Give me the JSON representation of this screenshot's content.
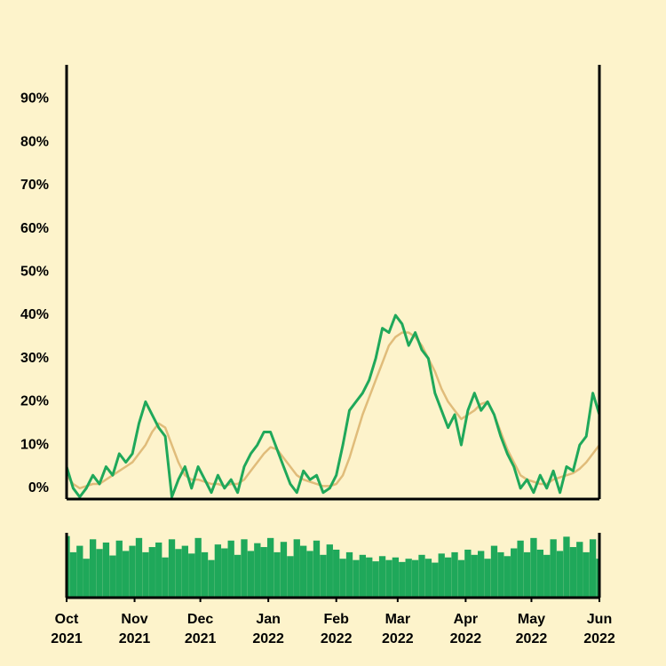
{
  "chart_data": [
    {
      "type": "line",
      "x": [
        0,
        3,
        6,
        9,
        12,
        15,
        18,
        21,
        24,
        27,
        30,
        33,
        36,
        39,
        42,
        45,
        48,
        51,
        54,
        57,
        60,
        63,
        66,
        69,
        72,
        75,
        78,
        81,
        84,
        87,
        90,
        93,
        96,
        99,
        102,
        105,
        108,
        111,
        114,
        117,
        120,
        123,
        126,
        129,
        132,
        135,
        138,
        141,
        144,
        147,
        150,
        153,
        156,
        159,
        162,
        165,
        168,
        171,
        174,
        177,
        180,
        183,
        186,
        189,
        192,
        195,
        198,
        201,
        204,
        207,
        210,
        213,
        216,
        219,
        222,
        225,
        228,
        231,
        234,
        237,
        240,
        243
      ],
      "xlim": [
        0,
        243
      ],
      "ylim": [
        -2.5,
        97.5
      ],
      "yticks": [
        {
          "value": 0,
          "label": "0%"
        },
        {
          "value": 10,
          "label": "10%"
        },
        {
          "value": 20,
          "label": "20%"
        },
        {
          "value": 30,
          "label": "30%"
        },
        {
          "value": 40,
          "label": "40%"
        },
        {
          "value": 50,
          "label": "50%"
        },
        {
          "value": 60,
          "label": "60%"
        },
        {
          "value": 70,
          "label": "70%"
        },
        {
          "value": 80,
          "label": "80%"
        },
        {
          "value": 90,
          "label": "90%"
        }
      ],
      "series": [
        {
          "color": "#1fa85a",
          "values": [
            5,
            0,
            -2,
            0,
            3,
            1,
            5,
            3,
            8,
            6,
            8,
            15,
            20,
            17,
            14,
            12,
            -2,
            2,
            5,
            0,
            5,
            2,
            -1,
            3,
            0,
            2,
            -1,
            5,
            8,
            10,
            13,
            13,
            9,
            5,
            1,
            -1,
            4,
            2,
            3,
            -1,
            0,
            3,
            10,
            18,
            20,
            22,
            25,
            30,
            37,
            36,
            40,
            38,
            33,
            36,
            32,
            30,
            22,
            18,
            14,
            17,
            10,
            18,
            22,
            18,
            20,
            17,
            12,
            8,
            5,
            0,
            2,
            -1,
            3,
            0,
            4,
            -1,
            5,
            4,
            10,
            12,
            22,
            17
          ]
        },
        {
          "color": "#e0bc7a",
          "values": [
            3,
            1,
            0,
            0.5,
            1,
            1,
            2,
            3,
            4,
            5,
            6,
            8,
            10,
            13,
            15,
            14,
            10,
            6,
            3,
            2,
            2,
            1.5,
            1,
            1,
            0.5,
            1,
            1,
            2,
            4,
            6,
            8,
            9.5,
            9,
            7,
            5,
            3,
            2,
            1.5,
            1,
            0.5,
            0.5,
            1,
            3,
            7,
            12,
            17,
            21,
            25,
            29,
            33,
            35,
            36,
            36,
            35,
            33,
            30,
            27,
            23,
            20,
            18,
            16,
            17,
            18,
            19.5,
            20,
            17,
            13,
            9,
            6,
            3,
            2,
            1.5,
            1,
            1,
            2,
            2.5,
            3,
            3.5,
            4.5,
            6,
            8,
            10
          ]
        }
      ]
    },
    {
      "type": "bar",
      "x": [
        0,
        3,
        6,
        9,
        12,
        15,
        18,
        21,
        24,
        27,
        30,
        33,
        36,
        39,
        42,
        45,
        48,
        51,
        54,
        57,
        60,
        63,
        66,
        69,
        72,
        75,
        78,
        81,
        84,
        87,
        90,
        93,
        96,
        99,
        102,
        105,
        108,
        111,
        114,
        117,
        120,
        123,
        126,
        129,
        132,
        135,
        138,
        141,
        144,
        147,
        150,
        153,
        156,
        159,
        162,
        165,
        168,
        171,
        174,
        177,
        180,
        183,
        186,
        189,
        192,
        195,
        198,
        201,
        204,
        207,
        210,
        213,
        216,
        219,
        222,
        225,
        228,
        231,
        234,
        237,
        240,
        243
      ],
      "xlim": [
        0,
        243
      ],
      "ylim": [
        0,
        100
      ],
      "color": "#1fa85a",
      "values": [
        95,
        70,
        80,
        60,
        90,
        75,
        85,
        65,
        88,
        72,
        80,
        92,
        70,
        78,
        85,
        62,
        90,
        75,
        80,
        68,
        92,
        70,
        58,
        82,
        76,
        88,
        66,
        90,
        72,
        84,
        78,
        92,
        70,
        86,
        64,
        90,
        80,
        72,
        88,
        66,
        82,
        74,
        60,
        70,
        58,
        66,
        62,
        56,
        64,
        58,
        62,
        55,
        60,
        58,
        66,
        60,
        54,
        68,
        62,
        70,
        58,
        74,
        66,
        72,
        60,
        80,
        70,
        64,
        76,
        88,
        70,
        92,
        74,
        66,
        90,
        72,
        94,
        78,
        86,
        70,
        90,
        60
      ],
      "xticks": [
        {
          "value": 0,
          "label": "Oct 2021"
        },
        {
          "value": 31,
          "label": "Nov 2021"
        },
        {
          "value": 61,
          "label": "Dec 2021"
        },
        {
          "value": 92,
          "label": "Jan 2022"
        },
        {
          "value": 123,
          "label": "Feb 2022"
        },
        {
          "value": 151,
          "label": "Mar 2022"
        },
        {
          "value": 182,
          "label": "Apr 2022"
        },
        {
          "value": 212,
          "label": "May 2022"
        },
        {
          "value": 243,
          "label": "Jun 2022"
        }
      ]
    }
  ]
}
